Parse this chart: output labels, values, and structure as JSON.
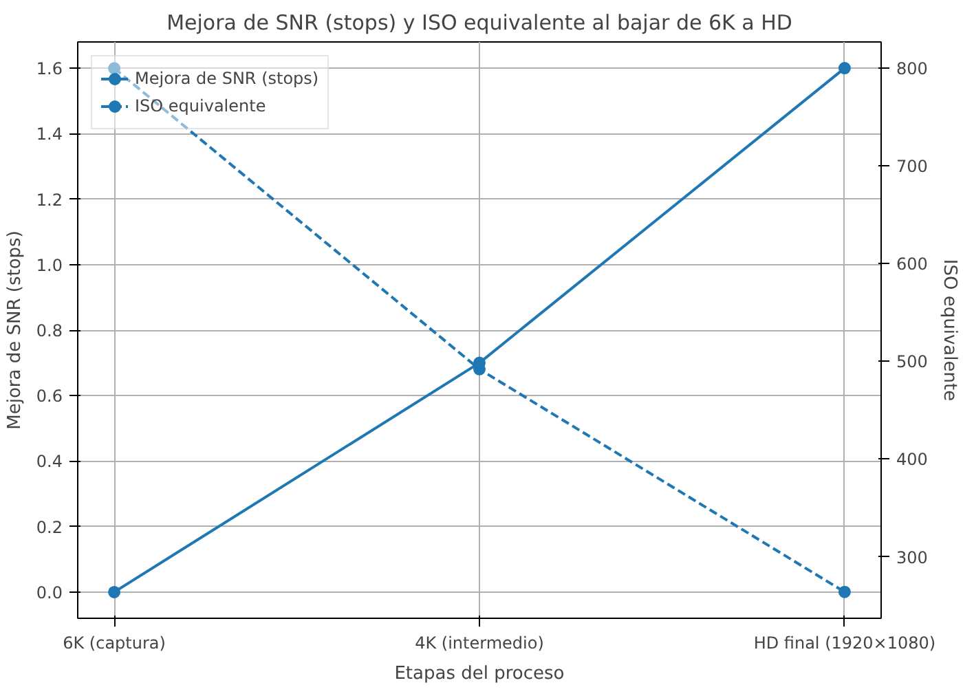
{
  "chart_data": {
    "type": "line",
    "title": "Mejora de SNR (stops) y ISO equivalente al bajar de 6K a HD",
    "xlabel": "Etapas del proceso",
    "ylabel": "Mejora de SNR (stops)",
    "y2label": "ISO equivalente",
    "categories": [
      "6K (captura)",
      "4K (intermedio)",
      "HD final (1920×1080)"
    ],
    "series": [
      {
        "name": "Mejora de SNR (stops)",
        "color": "#1f77b4",
        "values": [
          0,
          0.7,
          1.6
        ],
        "line_style": "solid",
        "marker": "circle"
      },
      {
        "name": "ISO equivalente",
        "color": "#1f77b4",
        "values": [
          800,
          492,
          264
        ],
        "axis": "y2",
        "line_style": "dashed",
        "marker": "circle"
      }
    ],
    "ylim": [
      -0.08,
      1.68
    ],
    "yticks": [
      {
        "value": 0,
        "label": "0.0"
      },
      {
        "value": 0.2,
        "label": "0.2"
      },
      {
        "value": 0.4,
        "label": "0.4"
      },
      {
        "value": 0.6,
        "label": "0.6"
      },
      {
        "value": 0.8,
        "label": "0.8"
      },
      {
        "value": 1,
        "label": "1.0"
      },
      {
        "value": 1.2,
        "label": "1.2"
      },
      {
        "value": 1.4,
        "label": "1.4"
      },
      {
        "value": 1.6,
        "label": "1.6"
      }
    ],
    "y2lim": [
      237,
      827
    ],
    "y2ticks": [
      300,
      400,
      500,
      600,
      700,
      800
    ],
    "grid": true,
    "legend": "top left"
  }
}
